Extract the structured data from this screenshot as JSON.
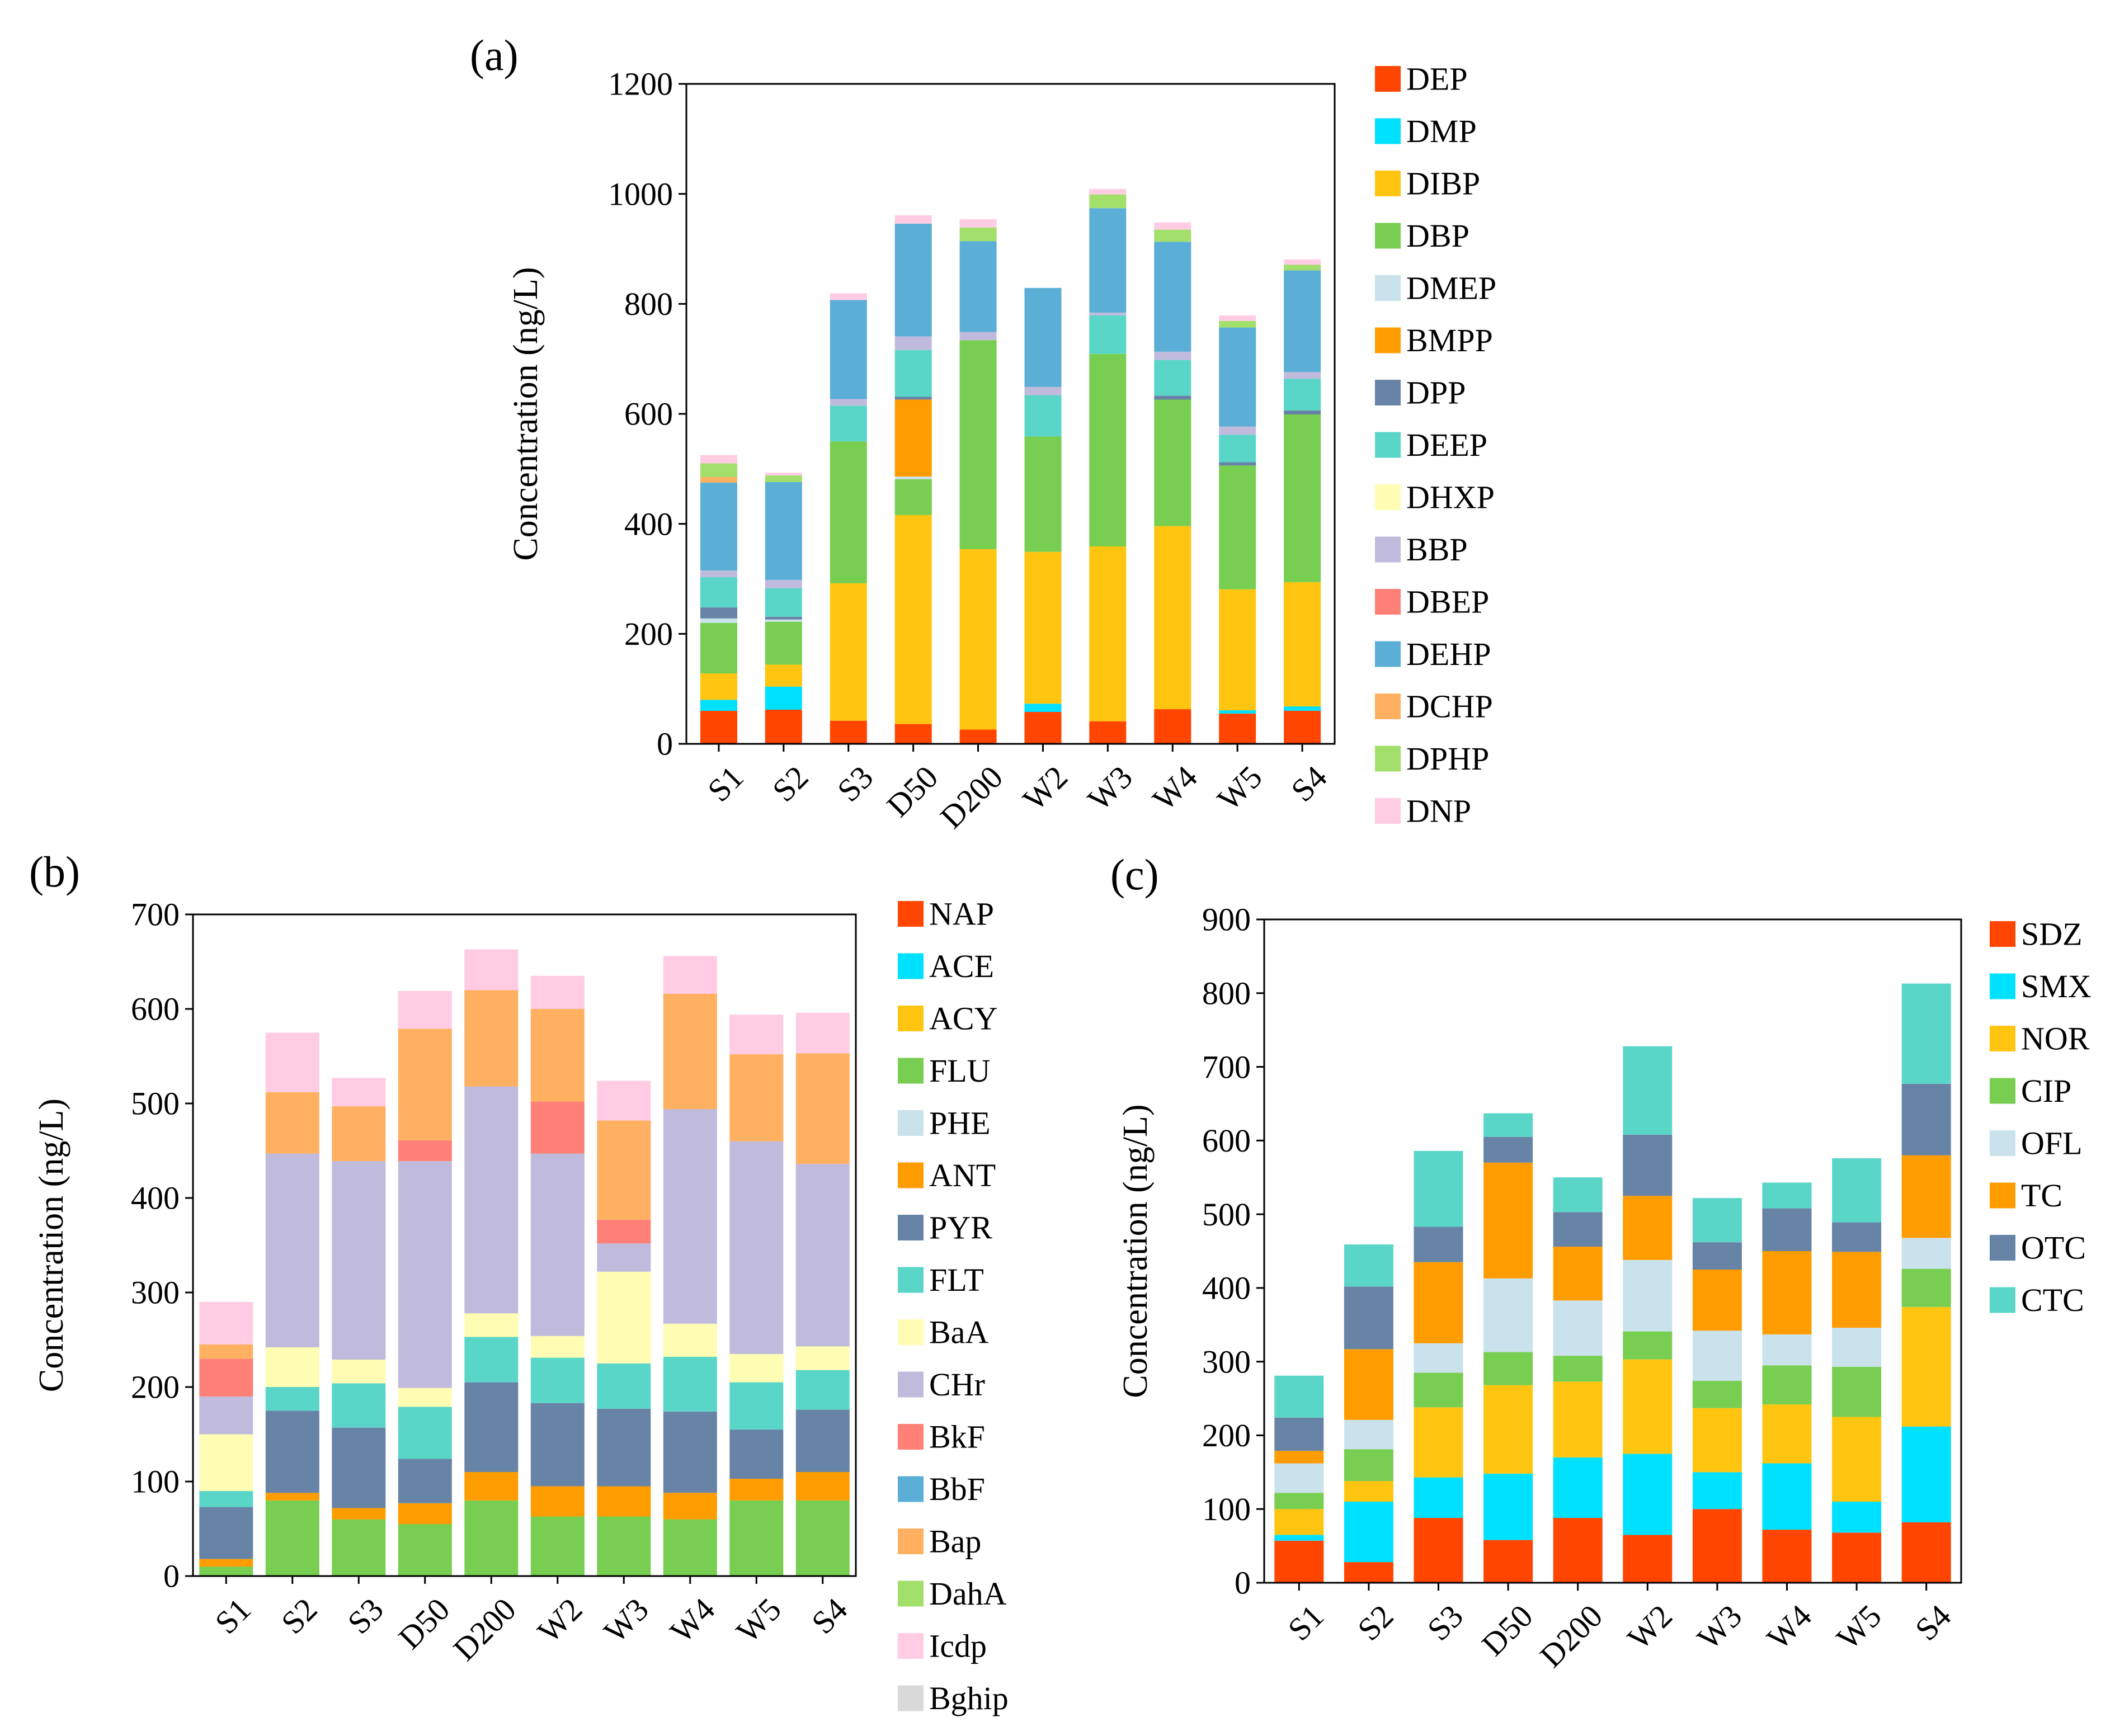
{
  "figure": {
    "categories": [
      "S1",
      "S2",
      "S3",
      "D50",
      "D200",
      "W2",
      "W3",
      "W4",
      "W5",
      "S4"
    ]
  },
  "chart_data": [
    {
      "type": "bar",
      "stacked": true,
      "panel_label": "(a)",
      "title": "",
      "xlabel": "",
      "ylabel": "Concentration (ng/L)",
      "ylim": [
        0,
        1200
      ],
      "yticks": [
        0,
        200,
        400,
        600,
        800,
        1000,
        1200
      ],
      "grid": false,
      "legend_position": "right",
      "categories": [
        "S1",
        "S2",
        "S3",
        "D50",
        "D200",
        "W2",
        "W3",
        "W4",
        "W5",
        "S4"
      ],
      "series": [
        {
          "name": "DEP",
          "color": "#FF4500",
          "values": [
            60,
            62,
            42,
            36,
            26,
            58,
            41,
            63,
            55,
            60
          ]
        },
        {
          "name": "DMP",
          "color": "#00E0FF",
          "values": [
            20,
            42,
            0,
            0,
            0,
            15,
            0,
            0,
            6,
            8
          ]
        },
        {
          "name": "DIBP",
          "color": "#FFC510",
          "values": [
            48,
            40,
            250,
            380,
            328,
            276,
            318,
            333,
            220,
            226
          ]
        },
        {
          "name": "DBP",
          "color": "#78CE50",
          "values": [
            92,
            78,
            258,
            65,
            380,
            210,
            350,
            230,
            225,
            305
          ]
        },
        {
          "name": "DMEP",
          "color": "#C9E2EC",
          "values": [
            8,
            4,
            0,
            5,
            0,
            0,
            0,
            0,
            0,
            0
          ]
        },
        {
          "name": "BMPP",
          "color": "#FF9C00",
          "values": [
            0,
            0,
            0,
            140,
            0,
            0,
            0,
            0,
            0,
            0
          ]
        },
        {
          "name": "DPP",
          "color": "#6783A6",
          "values": [
            20,
            5,
            0,
            5,
            0,
            0,
            0,
            7,
            6,
            7
          ]
        },
        {
          "name": "DEEP",
          "color": "#5AD6C8",
          "values": [
            55,
            52,
            65,
            85,
            0,
            75,
            70,
            65,
            50,
            58
          ]
        },
        {
          "name": "DHXP",
          "color": "#FFFCB3",
          "values": [
            0,
            0,
            0,
            0,
            0,
            0,
            0,
            0,
            0,
            0
          ]
        },
        {
          "name": "BBP",
          "color": "#C0BBDD",
          "values": [
            12,
            15,
            12,
            25,
            15,
            15,
            5,
            15,
            15,
            12
          ]
        },
        {
          "name": "DBEP",
          "color": "#FF8076",
          "values": [
            0,
            0,
            0,
            0,
            0,
            0,
            0,
            0,
            0,
            0
          ]
        },
        {
          "name": "DEHP",
          "color": "#5BAED6",
          "values": [
            160,
            178,
            180,
            205,
            165,
            180,
            190,
            200,
            180,
            185
          ]
        },
        {
          "name": "DCHP",
          "color": "#FFB061",
          "values": [
            10,
            0,
            0,
            0,
            0,
            0,
            0,
            0,
            0,
            0
          ]
        },
        {
          "name": "DPHP",
          "color": "#A2DF6B",
          "values": [
            25,
            12,
            0,
            0,
            25,
            0,
            25,
            22,
            12,
            10
          ]
        },
        {
          "name": "DNP",
          "color": "#FFCCE3",
          "values": [
            15,
            5,
            12,
            15,
            15,
            0,
            10,
            13,
            10,
            10
          ]
        }
      ]
    },
    {
      "type": "bar",
      "stacked": true,
      "panel_label": "(b)",
      "title": "",
      "xlabel": "",
      "ylabel": "Concentration (ng/L)",
      "ylim": [
        0,
        700
      ],
      "yticks": [
        0,
        100,
        200,
        300,
        400,
        500,
        600,
        700
      ],
      "grid": false,
      "legend_position": "right",
      "categories": [
        "S1",
        "S2",
        "S3",
        "D50",
        "D200",
        "W2",
        "W3",
        "W4",
        "W5",
        "S4"
      ],
      "series": [
        {
          "name": "NAP",
          "color": "#FF4500",
          "values": [
            0,
            0,
            0,
            0,
            0,
            0,
            0,
            0,
            0,
            0
          ]
        },
        {
          "name": "ACE",
          "color": "#00E0FF",
          "values": [
            0,
            0,
            0,
            0,
            0,
            0,
            0,
            0,
            0,
            0
          ]
        },
        {
          "name": "ACY",
          "color": "#FFC510",
          "values": [
            0,
            0,
            0,
            0,
            0,
            0,
            0,
            0,
            0,
            0
          ]
        },
        {
          "name": "FLU",
          "color": "#78CE50",
          "values": [
            10,
            80,
            60,
            55,
            80,
            63,
            63,
            60,
            80,
            80
          ]
        },
        {
          "name": "PHE",
          "color": "#C9E2EC",
          "values": [
            0,
            0,
            0,
            0,
            0,
            0,
            0,
            0,
            0,
            0
          ]
        },
        {
          "name": "ANT",
          "color": "#FF9C00",
          "values": [
            8,
            8,
            12,
            22,
            30,
            32,
            32,
            28,
            23,
            30
          ]
        },
        {
          "name": "PYR",
          "color": "#6783A6",
          "values": [
            55,
            87,
            85,
            47,
            95,
            88,
            82,
            86,
            52,
            66
          ]
        },
        {
          "name": "FLT",
          "color": "#5AD6C8",
          "values": [
            17,
            25,
            47,
            55,
            48,
            48,
            48,
            58,
            50,
            42
          ]
        },
        {
          "name": "BaA",
          "color": "#FFFCB3",
          "values": [
            60,
            42,
            25,
            20,
            25,
            23,
            97,
            35,
            30,
            25
          ]
        },
        {
          "name": "CHr",
          "color": "#C0BBDD",
          "values": [
            40,
            205,
            210,
            240,
            240,
            193,
            30,
            227,
            225,
            193
          ]
        },
        {
          "name": "BkF",
          "color": "#FF8076",
          "values": [
            40,
            0,
            0,
            22,
            0,
            55,
            25,
            0,
            0,
            0
          ]
        },
        {
          "name": "BbF",
          "color": "#5BAED6",
          "values": [
            0,
            0,
            0,
            0,
            0,
            0,
            0,
            0,
            0,
            0
          ]
        },
        {
          "name": "Bap",
          "color": "#FFB061",
          "values": [
            15,
            65,
            58,
            118,
            102,
            98,
            105,
            122,
            92,
            117
          ]
        },
        {
          "name": "DahA",
          "color": "#A2DF6B",
          "values": [
            0,
            0,
            0,
            0,
            0,
            0,
            0,
            0,
            0,
            0
          ]
        },
        {
          "name": "Icdp",
          "color": "#FFCCE3",
          "values": [
            45,
            63,
            30,
            40,
            43,
            35,
            42,
            40,
            42,
            43
          ]
        },
        {
          "name": "Bghip",
          "color": "#D9D9D9",
          "values": [
            0,
            0,
            0,
            0,
            0,
            0,
            0,
            0,
            0,
            0
          ]
        }
      ]
    },
    {
      "type": "bar",
      "stacked": true,
      "panel_label": "(c)",
      "title": "",
      "xlabel": "",
      "ylabel": "Concentration (ng/L)",
      "ylim": [
        0,
        900
      ],
      "yticks": [
        0,
        100,
        200,
        300,
        400,
        500,
        600,
        700,
        800,
        900
      ],
      "grid": false,
      "legend_position": "right",
      "categories": [
        "S1",
        "S2",
        "S3",
        "D50",
        "D200",
        "W2",
        "W3",
        "W4",
        "W5",
        "S4"
      ],
      "series": [
        {
          "name": "SDZ",
          "color": "#FF4500",
          "values": [
            57,
            28,
            88,
            58,
            88,
            65,
            100,
            72,
            68,
            82
          ]
        },
        {
          "name": "SMX",
          "color": "#00E0FF",
          "values": [
            8,
            82,
            55,
            90,
            82,
            110,
            50,
            90,
            42,
            130
          ]
        },
        {
          "name": "NOR",
          "color": "#FFC510",
          "values": [
            35,
            28,
            95,
            120,
            103,
            128,
            87,
            80,
            115,
            162
          ]
        },
        {
          "name": "CIP",
          "color": "#78CE50",
          "values": [
            22,
            43,
            47,
            45,
            35,
            38,
            37,
            53,
            68,
            52
          ]
        },
        {
          "name": "OFL",
          "color": "#C9E2EC",
          "values": [
            40,
            40,
            40,
            100,
            75,
            97,
            68,
            42,
            53,
            42
          ]
        },
        {
          "name": "TC",
          "color": "#FF9C00",
          "values": [
            17,
            96,
            110,
            157,
            73,
            87,
            83,
            113,
            103,
            112
          ]
        },
        {
          "name": "OTC",
          "color": "#6783A6",
          "values": [
            45,
            85,
            48,
            35,
            47,
            83,
            37,
            58,
            40,
            97
          ]
        },
        {
          "name": "CTC",
          "color": "#5AD6C8",
          "values": [
            57,
            57,
            103,
            32,
            47,
            120,
            60,
            35,
            87,
            136
          ]
        }
      ]
    }
  ]
}
